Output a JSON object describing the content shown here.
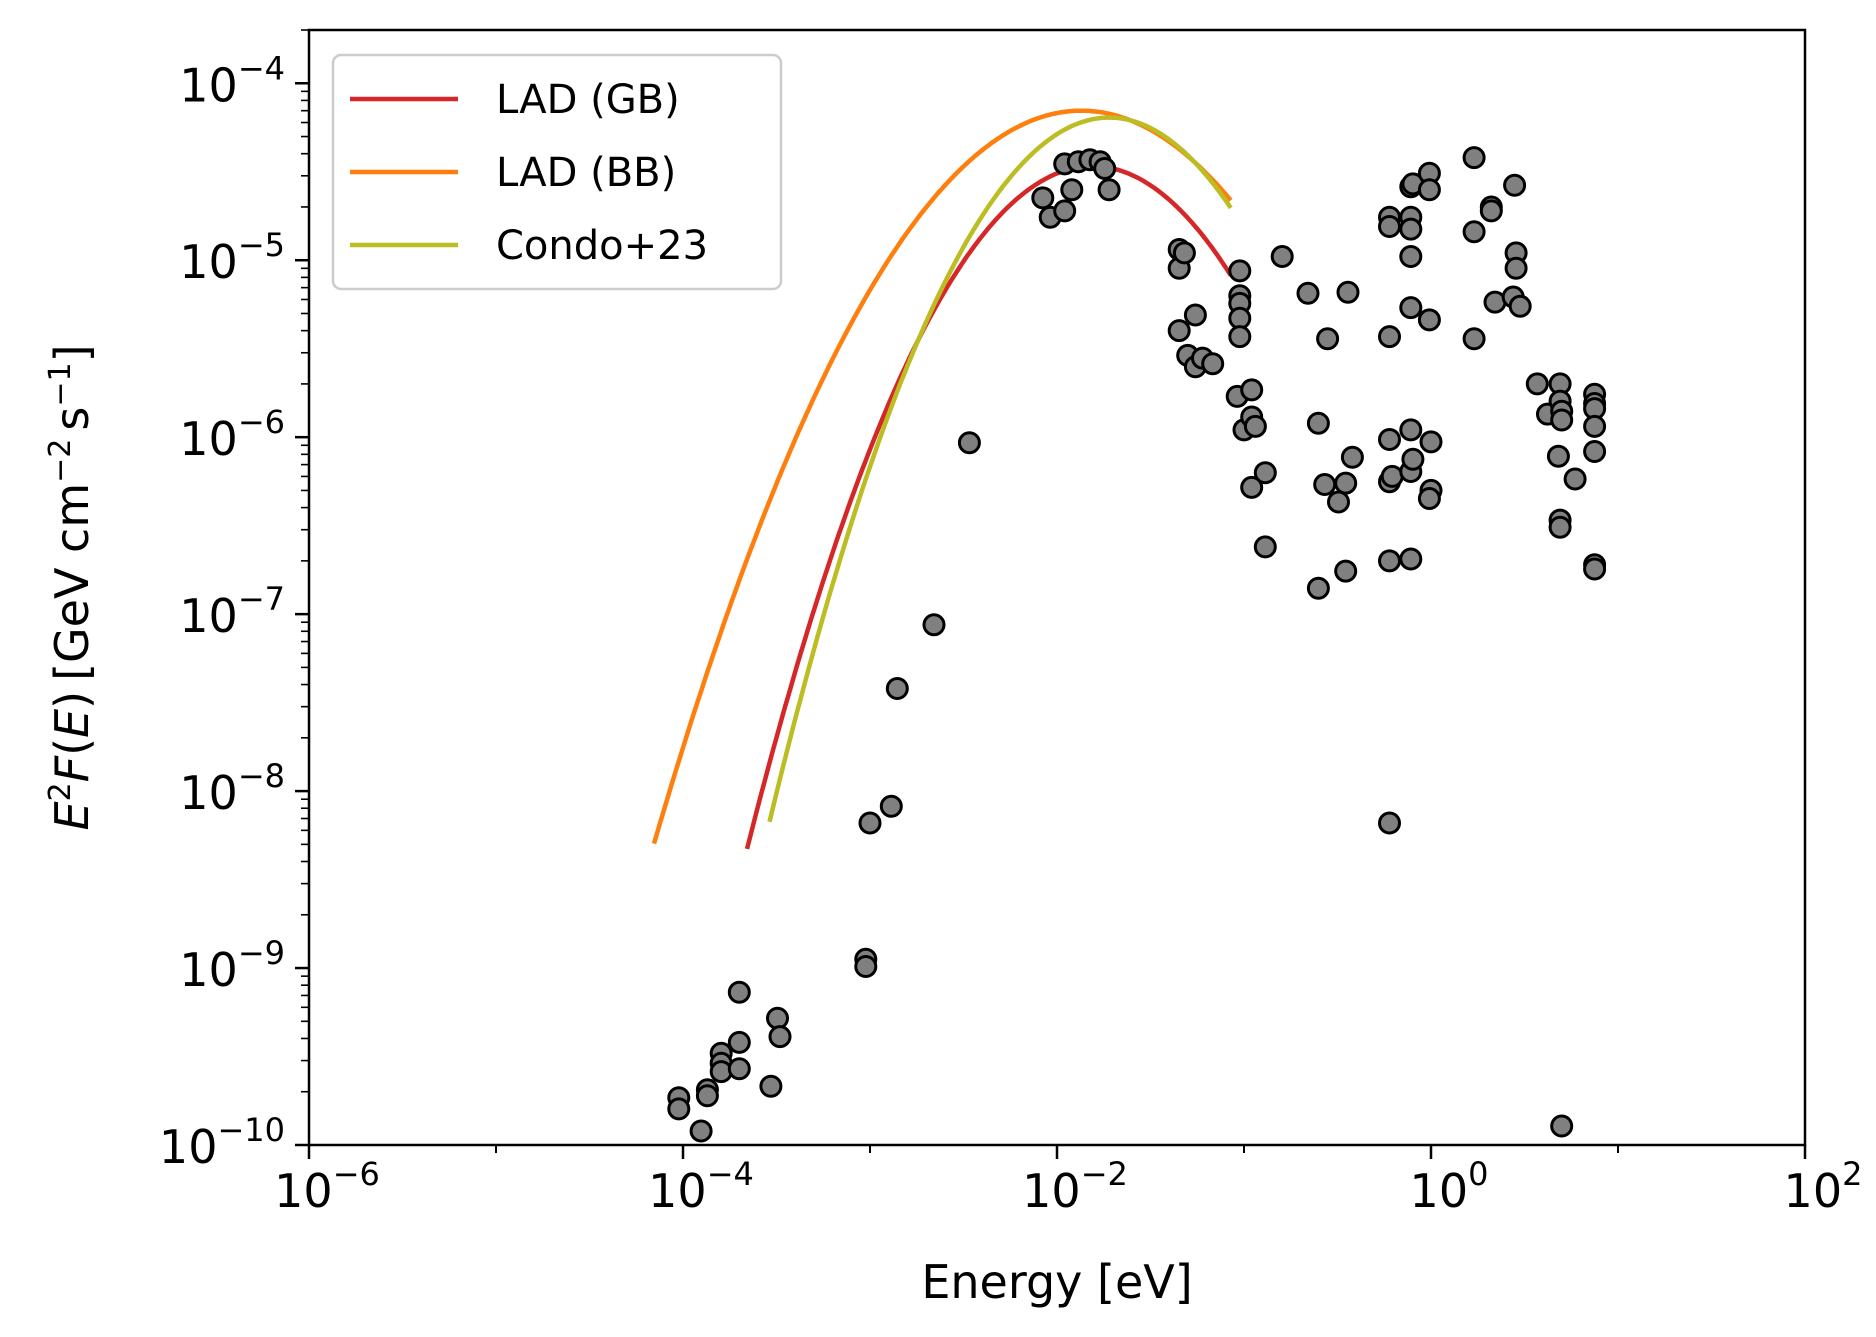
{
  "chart_data": {
    "type": "scatter",
    "title": "",
    "xlabel": "Energy [eV]",
    "ylabel_parts": {
      "e": "E",
      "sup2": "2",
      "f": "F",
      "open": "(",
      "arg": "E",
      "close": ")",
      "units": "[GeV cm",
      "cm_exp": "−2",
      "s": "s",
      "s_exp": "−1",
      "end": "]"
    },
    "xscale": "log",
    "yscale": "log",
    "xlim": [
      1e-06,
      100
    ],
    "ylim": [
      1e-10,
      0.0002
    ],
    "x_ticks": [
      {
        "value": 1e-06,
        "base": "10",
        "exp": "−6"
      },
      {
        "value": 0.0001,
        "base": "10",
        "exp": "−4"
      },
      {
        "value": 0.01,
        "base": "10",
        "exp": "−2"
      },
      {
        "value": 1,
        "base": "10",
        "exp": "0"
      },
      {
        "value": 100,
        "base": "10",
        "exp": "2"
      }
    ],
    "y_ticks": [
      {
        "value": 1e-10,
        "base": "10",
        "exp": "−10"
      },
      {
        "value": 1e-09,
        "base": "10",
        "exp": "−9"
      },
      {
        "value": 1e-08,
        "base": "10",
        "exp": "−8"
      },
      {
        "value": 1e-07,
        "base": "10",
        "exp": "−7"
      },
      {
        "value": 1e-06,
        "base": "10",
        "exp": "−6"
      },
      {
        "value": 1e-05,
        "base": "10",
        "exp": "−5"
      },
      {
        "value": 0.0001,
        "base": "10",
        "exp": "−4"
      }
    ],
    "legend": {
      "position": "upper-left"
    },
    "series": [
      {
        "name": "LAD (GB)",
        "color": "#d62728",
        "kind": "line",
        "peak_x": 0.0155,
        "peak_y": 3.4e-05,
        "width_decades": 0.62,
        "x_range": [
          0.00022,
          0.085
        ]
      },
      {
        "name": "LAD (BB)",
        "color": "#ff7f0e",
        "kind": "line",
        "peak_x": 0.0135,
        "peak_y": 7e-05,
        "width_decades": 0.74,
        "x_range": [
          7e-05,
          0.085
        ]
      },
      {
        "name": "Condo+23",
        "color": "#bcbd22",
        "kind": "line",
        "peak_x": 0.019,
        "peak_y": 6.4e-05,
        "width_decades": 0.6,
        "x_range": [
          0.00029,
          0.085
        ]
      }
    ],
    "points_style": {
      "fill": "#808080",
      "stroke": "#000000"
    },
    "points": [
      [
        9.5e-05,
        1.85e-10
      ],
      [
        9.5e-05,
        1.6e-10
      ],
      [
        0.000125,
        1.2e-10
      ],
      [
        0.000135,
        2.05e-10
      ],
      [
        0.000135,
        1.9e-10
      ],
      [
        0.00016,
        3.3e-10
      ],
      [
        0.00016,
        2.9e-10
      ],
      [
        0.00016,
        2.6e-10
      ],
      [
        0.0002,
        7.3e-10
      ],
      [
        0.0002,
        3.8e-10
      ],
      [
        0.0002,
        2.7e-10
      ],
      [
        0.000295,
        2.15e-10
      ],
      [
        0.00032,
        5.2e-10
      ],
      [
        0.00033,
        4.1e-10
      ],
      [
        0.00095,
        1.12e-09
      ],
      [
        0.00095,
        1.02e-09
      ],
      [
        0.001,
        6.6e-09
      ],
      [
        0.0013,
        8.2e-09
      ],
      [
        0.0014,
        3.8e-08
      ],
      [
        0.0022,
        8.7e-08
      ],
      [
        0.0034,
        9.3e-07
      ],
      [
        0.0084,
        2.25e-05
      ],
      [
        0.0092,
        1.75e-05
      ],
      [
        0.011,
        3.5e-05
      ],
      [
        0.011,
        1.9e-05
      ],
      [
        0.012,
        2.5e-05
      ],
      [
        0.013,
        3.6e-05
      ],
      [
        0.015,
        3.7e-05
      ],
      [
        0.017,
        3.6e-05
      ],
      [
        0.018,
        3.3e-05
      ],
      [
        0.019,
        2.5e-05
      ],
      [
        0.045,
        1.15e-05
      ],
      [
        0.045,
        9e-06
      ],
      [
        0.045,
        4e-06
      ],
      [
        0.048,
        1.1e-05
      ],
      [
        0.05,
        2.9e-06
      ],
      [
        0.055,
        4.9e-06
      ],
      [
        0.055,
        2.5e-06
      ],
      [
        0.06,
        2.8e-06
      ],
      [
        0.068,
        2.6e-06
      ],
      [
        0.095,
        8.7e-06
      ],
      [
        0.095,
        6.3e-06
      ],
      [
        0.095,
        5.7e-06
      ],
      [
        0.095,
        4.7e-06
      ],
      [
        0.095,
        3.7e-06
      ],
      [
        0.092,
        1.7e-06
      ],
      [
        0.1,
        1.1e-06
      ],
      [
        0.11,
        1.85e-06
      ],
      [
        0.11,
        1.3e-06
      ],
      [
        0.115,
        1.15e-06
      ],
      [
        0.11,
        5.2e-07
      ],
      [
        0.13,
        6.3e-07
      ],
      [
        0.13,
        2.4e-07
      ],
      [
        0.16,
        1.05e-05
      ],
      [
        0.22,
        6.5e-06
      ],
      [
        0.25,
        1.2e-06
      ],
      [
        0.25,
        1.4e-07
      ],
      [
        0.28,
        3.6e-06
      ],
      [
        0.27,
        5.4e-07
      ],
      [
        0.32,
        4.3e-07
      ],
      [
        0.35,
        5.5e-07
      ],
      [
        0.36,
        6.6e-06
      ],
      [
        0.38,
        7.7e-07
      ],
      [
        0.35,
        1.75e-07
      ],
      [
        0.6,
        1.75e-05
      ],
      [
        0.6,
        1.55e-05
      ],
      [
        0.6,
        3.7e-06
      ],
      [
        0.6,
        9.7e-07
      ],
      [
        0.6,
        5.6e-07
      ],
      [
        0.6,
        2e-07
      ],
      [
        0.6,
        6.6e-09
      ],
      [
        0.62,
        6e-07
      ],
      [
        0.78,
        2.6e-05
      ],
      [
        0.8,
        2.7e-05
      ],
      [
        0.78,
        1.75e-05
      ],
      [
        0.78,
        1.5e-05
      ],
      [
        0.78,
        1.05e-05
      ],
      [
        0.78,
        5.4e-06
      ],
      [
        0.78,
        1.1e-06
      ],
      [
        0.78,
        6.4e-07
      ],
      [
        0.8,
        7.5e-07
      ],
      [
        0.78,
        2.05e-07
      ],
      [
        0.98,
        3.1e-05
      ],
      [
        0.98,
        2.5e-05
      ],
      [
        0.98,
        4.6e-06
      ],
      [
        1.0,
        9.4e-07
      ],
      [
        1.0,
        5e-07
      ],
      [
        0.98,
        4.5e-07
      ],
      [
        1.7,
        3.8e-05
      ],
      [
        1.7,
        1.45e-05
      ],
      [
        1.7,
        3.6e-06
      ],
      [
        2.1,
        2e-05
      ],
      [
        2.1,
        1.9e-05
      ],
      [
        2.2,
        5.8e-06
      ],
      [
        2.8,
        2.65e-05
      ],
      [
        2.85,
        1.1e-05
      ],
      [
        2.85,
        9e-06
      ],
      [
        2.75,
        6.2e-06
      ],
      [
        3.0,
        5.5e-06
      ],
      [
        3.7,
        2e-06
      ],
      [
        4.2,
        1.35e-06
      ],
      [
        4.9,
        2e-06
      ],
      [
        4.9,
        1.6e-06
      ],
      [
        5.0,
        1.4e-06
      ],
      [
        5.0,
        1.25e-06
      ],
      [
        4.8,
        7.8e-07
      ],
      [
        5.9,
        5.8e-07
      ],
      [
        4.9,
        3.4e-07
      ],
      [
        4.9,
        3.1e-07
      ],
      [
        5.0,
        1.28e-10
      ],
      [
        7.5,
        1.75e-06
      ],
      [
        7.5,
        1.55e-06
      ],
      [
        7.5,
        1.45e-06
      ],
      [
        7.5,
        1.15e-06
      ],
      [
        7.5,
        8.3e-07
      ],
      [
        7.5,
        1.9e-07
      ],
      [
        7.5,
        1.8e-07
      ]
    ]
  }
}
